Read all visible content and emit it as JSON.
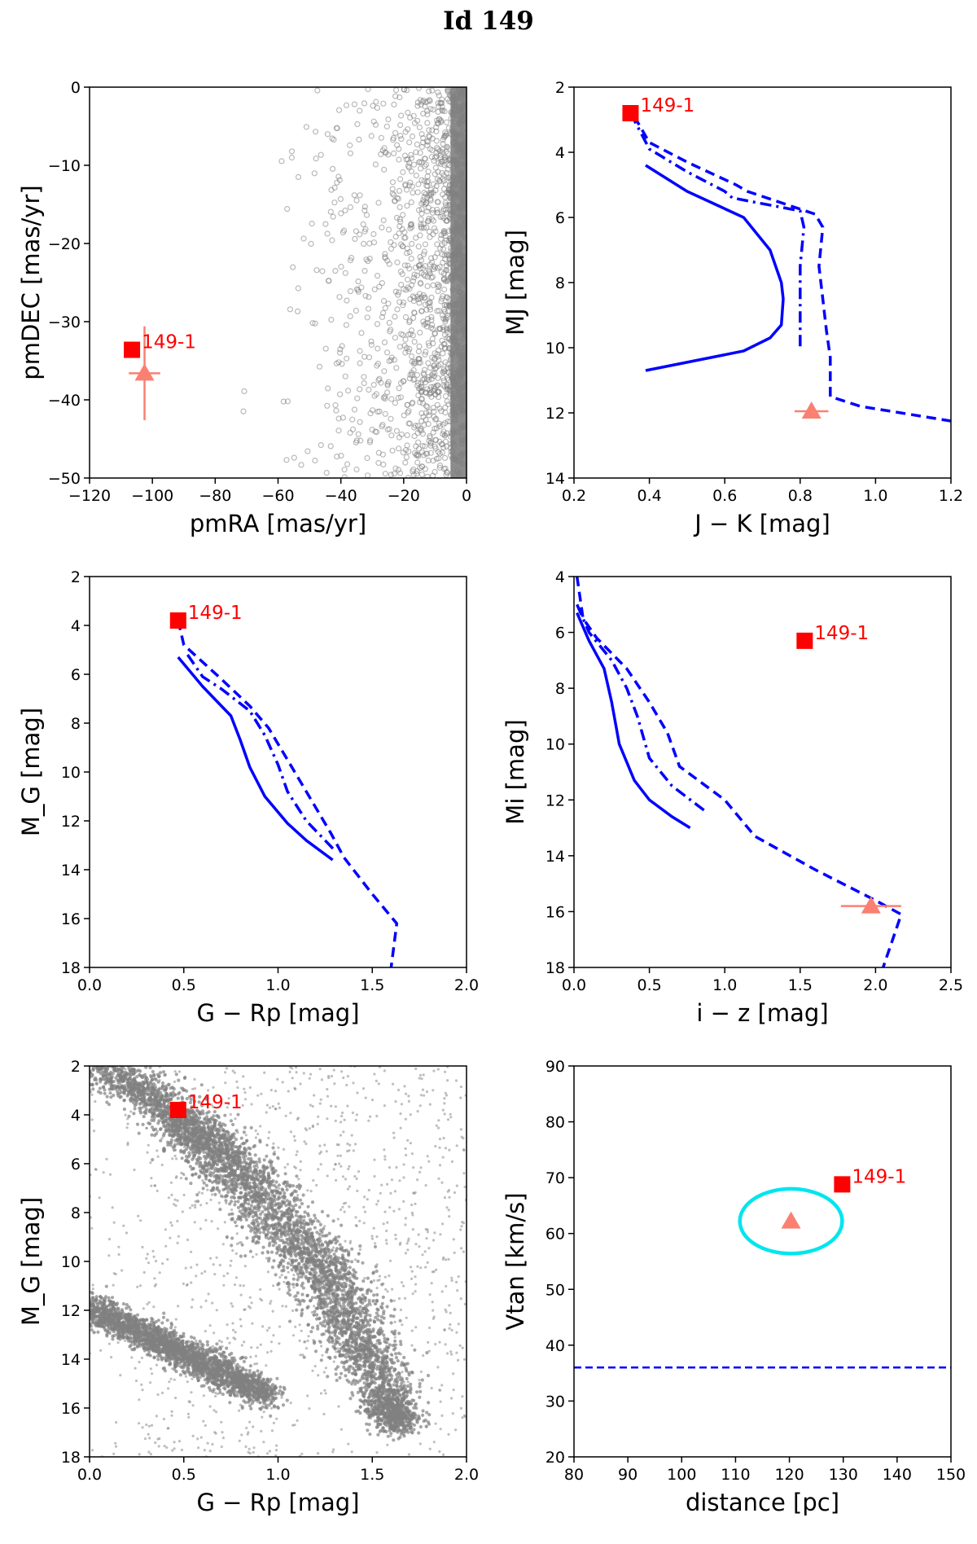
{
  "figure": {
    "title": "Id 149"
  },
  "colors": {
    "target": "#ff0000",
    "companion": "#fa8072",
    "model": "#0000ff",
    "ellipse": "#00e5ee",
    "background_points": "#808080"
  },
  "chart_data": [
    {
      "id": "pm",
      "type": "scatter",
      "xlabel": "pmRA [mas/yr]",
      "ylabel": "pmDEC [mas/yr]",
      "xlim": [
        -120,
        0
      ],
      "ylim": [
        -50,
        0
      ],
      "xticks": [
        -120,
        -100,
        -80,
        -60,
        -40,
        -20,
        0
      ],
      "yticks": [
        0,
        -10,
        -20,
        -30,
        -40,
        -50
      ],
      "background": {
        "style": "open-circles",
        "description": "dense field cloud concentrated near pmRA 0, pmDEC 0"
      },
      "target": {
        "label": "149-1",
        "x": -106.5,
        "y": -33.6
      },
      "companion": {
        "x": -102.5,
        "y": -36.6,
        "xerr": 5,
        "yerr": 6
      }
    },
    {
      "id": "jk",
      "type": "line",
      "xlabel": "J − K [mag]",
      "ylabel": "MJ [mag]",
      "xlim": [
        0.2,
        1.2
      ],
      "ylim": [
        14,
        2
      ],
      "xticks": [
        0.2,
        0.4,
        0.6,
        0.8,
        1.0,
        1.2
      ],
      "yticks": [
        2,
        4,
        6,
        8,
        10,
        12,
        14
      ],
      "series": [
        {
          "style": "solid",
          "points": [
            [
              0.39,
              4.4
            ],
            [
              0.5,
              5.2
            ],
            [
              0.65,
              6.0
            ],
            [
              0.72,
              7.0
            ],
            [
              0.75,
              8.0
            ],
            [
              0.755,
              8.5
            ],
            [
              0.75,
              9.3
            ],
            [
              0.72,
              9.7
            ],
            [
              0.65,
              10.1
            ],
            [
              0.39,
              10.7
            ]
          ]
        },
        {
          "style": "dashdot",
          "points": [
            [
              0.35,
              2.8
            ],
            [
              0.4,
              3.9
            ],
            [
              0.5,
              4.6
            ],
            [
              0.6,
              5.2
            ],
            [
              0.62,
              5.4
            ],
            [
              0.8,
              5.8
            ],
            [
              0.81,
              6.3
            ],
            [
              0.8,
              7.5
            ],
            [
              0.8,
              8.5
            ],
            [
              0.8,
              10.0
            ]
          ]
        },
        {
          "style": "dashed",
          "points": [
            [
              0.36,
              2.9
            ],
            [
              0.4,
              3.7
            ],
            [
              0.5,
              4.3
            ],
            [
              0.63,
              5.0
            ],
            [
              0.66,
              5.2
            ],
            [
              0.84,
              5.9
            ],
            [
              0.86,
              6.3
            ],
            [
              0.85,
              7.5
            ],
            [
              0.86,
              8.5
            ],
            [
              0.87,
              9.5
            ],
            [
              0.88,
              10.3
            ],
            [
              0.88,
              11.5
            ],
            [
              0.96,
              11.8
            ],
            [
              1.2,
              12.25
            ]
          ]
        }
      ],
      "target": {
        "label": "149-1",
        "x": 0.35,
        "y": 2.8
      },
      "companion": {
        "x": 0.83,
        "y": 11.95,
        "xerr": 0.045,
        "yerr": 0
      }
    },
    {
      "id": "grp",
      "type": "line",
      "xlabel": "G − Rp [mag]",
      "ylabel": "M_G [mag]",
      "xlim": [
        0.0,
        2.0
      ],
      "ylim": [
        18,
        2
      ],
      "xticks": [
        0.0,
        0.5,
        1.0,
        1.5,
        2.0
      ],
      "yticks": [
        2,
        4,
        6,
        8,
        10,
        12,
        14,
        16,
        18
      ],
      "series": [
        {
          "style": "solid",
          "points": [
            [
              0.47,
              5.3
            ],
            [
              0.6,
              6.5
            ],
            [
              0.75,
              7.7
            ],
            [
              0.8,
              8.7
            ],
            [
              0.85,
              9.8
            ],
            [
              0.93,
              11.0
            ],
            [
              1.05,
              12.1
            ],
            [
              1.15,
              12.8
            ],
            [
              1.29,
              13.6
            ]
          ]
        },
        {
          "style": "dashdot",
          "points": [
            [
              0.52,
              5.2
            ],
            [
              0.6,
              6.1
            ],
            [
              0.7,
              6.6
            ],
            [
              0.85,
              7.5
            ],
            [
              0.93,
              8.5
            ],
            [
              1.0,
              9.7
            ],
            [
              1.05,
              10.8
            ],
            [
              1.15,
              12.0
            ],
            [
              1.3,
              13.2
            ]
          ]
        },
        {
          "style": "dashed",
          "points": [
            [
              0.47,
              3.8
            ],
            [
              0.5,
              4.8
            ],
            [
              0.7,
              6.2
            ],
            [
              0.85,
              7.3
            ],
            [
              0.95,
              8.2
            ],
            [
              1.05,
              9.5
            ],
            [
              1.15,
              10.8
            ],
            [
              1.28,
              12.5
            ],
            [
              1.35,
              13.5
            ],
            [
              1.5,
              15.0
            ],
            [
              1.63,
              16.2
            ],
            [
              1.6,
              18.0
            ]
          ]
        }
      ],
      "target": {
        "label": "149-1",
        "x": 0.47,
        "y": 3.8
      }
    },
    {
      "id": "iz",
      "type": "line",
      "xlabel": "i − z [mag]",
      "ylabel": "Mi [mag]",
      "xlim": [
        0.0,
        2.5
      ],
      "ylim": [
        18,
        4
      ],
      "xticks": [
        0.0,
        0.5,
        1.0,
        1.5,
        2.0,
        2.5
      ],
      "yticks": [
        4,
        6,
        8,
        10,
        12,
        14,
        16,
        18
      ],
      "series": [
        {
          "style": "solid",
          "points": [
            [
              0.02,
              5.3
            ],
            [
              0.1,
              6.3
            ],
            [
              0.2,
              7.3
            ],
            [
              0.25,
              8.5
            ],
            [
              0.3,
              10.0
            ],
            [
              0.4,
              11.3
            ],
            [
              0.5,
              12.0
            ],
            [
              0.65,
              12.6
            ],
            [
              0.77,
              13.0
            ]
          ]
        },
        {
          "style": "dashdot",
          "points": [
            [
              0.02,
              5.0
            ],
            [
              0.1,
              6.0
            ],
            [
              0.25,
              7.0
            ],
            [
              0.35,
              8.0
            ],
            [
              0.42,
              9.0
            ],
            [
              0.5,
              10.5
            ],
            [
              0.65,
              11.5
            ],
            [
              0.87,
              12.4
            ]
          ]
        },
        {
          "style": "dashed",
          "points": [
            [
              0.02,
              4.0
            ],
            [
              0.06,
              5.5
            ],
            [
              0.15,
              6.2
            ],
            [
              0.35,
              7.3
            ],
            [
              0.5,
              8.5
            ],
            [
              0.62,
              9.6
            ],
            [
              0.7,
              10.8
            ],
            [
              1.0,
              12.0
            ],
            [
              1.2,
              13.3
            ],
            [
              1.6,
              14.5
            ],
            [
              2.0,
              15.6
            ],
            [
              2.17,
              16.1
            ],
            [
              2.05,
              18.0
            ]
          ]
        }
      ],
      "target": {
        "label": "149-1",
        "x": 1.53,
        "y": 6.3
      },
      "companion": {
        "x": 1.97,
        "y": 15.8,
        "xerr": 0.2,
        "yerr": 0
      }
    },
    {
      "id": "cmd",
      "type": "scatter",
      "xlabel": "G − Rp [mag]",
      "ylabel": "M_G [mag]",
      "xlim": [
        0.0,
        2.0
      ],
      "ylim": [
        18,
        2
      ],
      "xticks": [
        0.0,
        0.5,
        1.0,
        1.5,
        2.0
      ],
      "yticks": [
        2,
        4,
        6,
        8,
        10,
        12,
        14,
        16,
        18
      ],
      "background": {
        "style": "dots",
        "description": "main sequence and white dwarf sequence of field stars"
      },
      "target": {
        "label": "149-1",
        "x": 0.47,
        "y": 3.8
      }
    },
    {
      "id": "vtan",
      "type": "scatter",
      "xlabel": "distance [pc]",
      "ylabel": "Vtan [km/s]",
      "xlim": [
        80,
        150
      ],
      "ylim": [
        20,
        90
      ],
      "xticks": [
        80,
        90,
        100,
        110,
        120,
        130,
        140,
        150
      ],
      "yticks": [
        20,
        30,
        40,
        50,
        60,
        70,
        80,
        90
      ],
      "target": {
        "label": "149-1",
        "x": 129.8,
        "y": 68.8
      },
      "companion": {
        "x": 120.3,
        "y": 62.2
      },
      "ellipse": {
        "cx": 120.3,
        "cy": 62.2,
        "rx": 9.5,
        "ry": 5.8
      },
      "hline": {
        "y": 36.0,
        "style": "dashed"
      }
    }
  ]
}
